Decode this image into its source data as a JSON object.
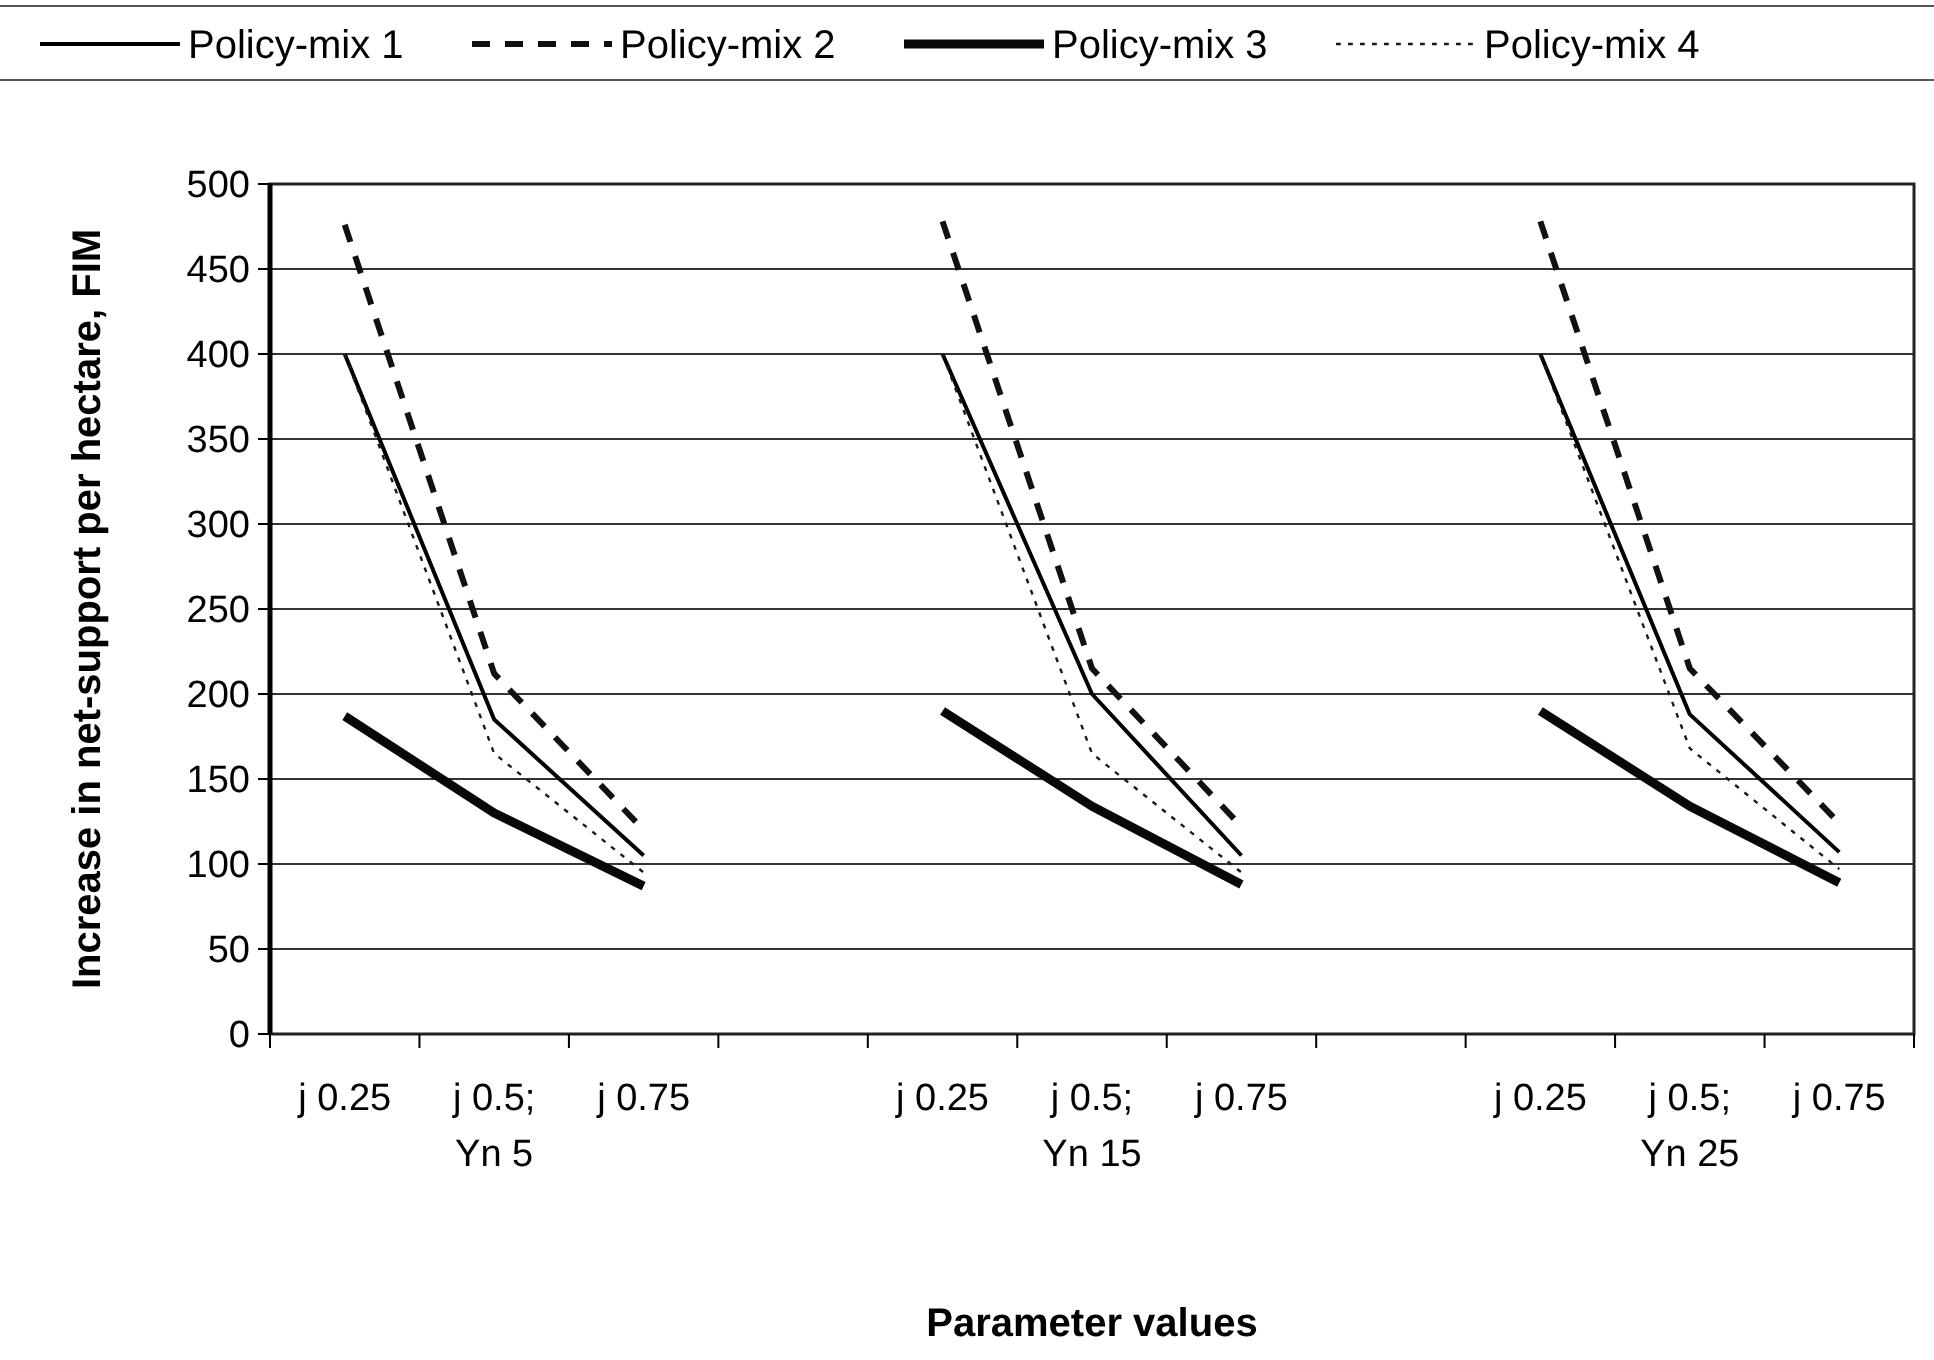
{
  "chart_data": {
    "type": "line",
    "xlabel": "Parameter values",
    "ylabel": "Increase in net-support per hectare, FIM",
    "categories": [
      "j 0.25",
      "j 0.5; Yn 5",
      "j 0.75",
      null,
      "j 0.25",
      "j 0.5; Yn 15",
      "j 0.75",
      null,
      "j 0.25",
      "j 0.5; Yn 25",
      "j 0.75"
    ],
    "series": [
      {
        "name": "Policy-mix 1",
        "color": "#000000",
        "line_style": "solid",
        "values": [
          400,
          185,
          105,
          null,
          400,
          200,
          105,
          null,
          400,
          188,
          107
        ]
      },
      {
        "name": "Policy-mix 2",
        "color": "#111111",
        "line_style": "dashed",
        "values": [
          476,
          212,
          120,
          null,
          478,
          215,
          122,
          null,
          478,
          215,
          124
        ]
      },
      {
        "name": "Policy-mix 3",
        "color": "#080808",
        "line_style": "solid",
        "values": [
          187,
          130,
          87,
          null,
          190,
          134,
          88,
          null,
          190,
          134,
          89
        ]
      },
      {
        "name": "Policy-mix 4",
        "color": "#1a1a1a",
        "line_style": "dotted",
        "values": [
          400,
          165,
          95,
          null,
          400,
          165,
          95,
          null,
          400,
          168,
          97
        ]
      }
    ],
    "ylim": [
      0,
      500
    ],
    "yticks": [
      0,
      50,
      100,
      150,
      200,
      250,
      300,
      350,
      400,
      450,
      500
    ],
    "grid": "y",
    "legend": "top"
  }
}
